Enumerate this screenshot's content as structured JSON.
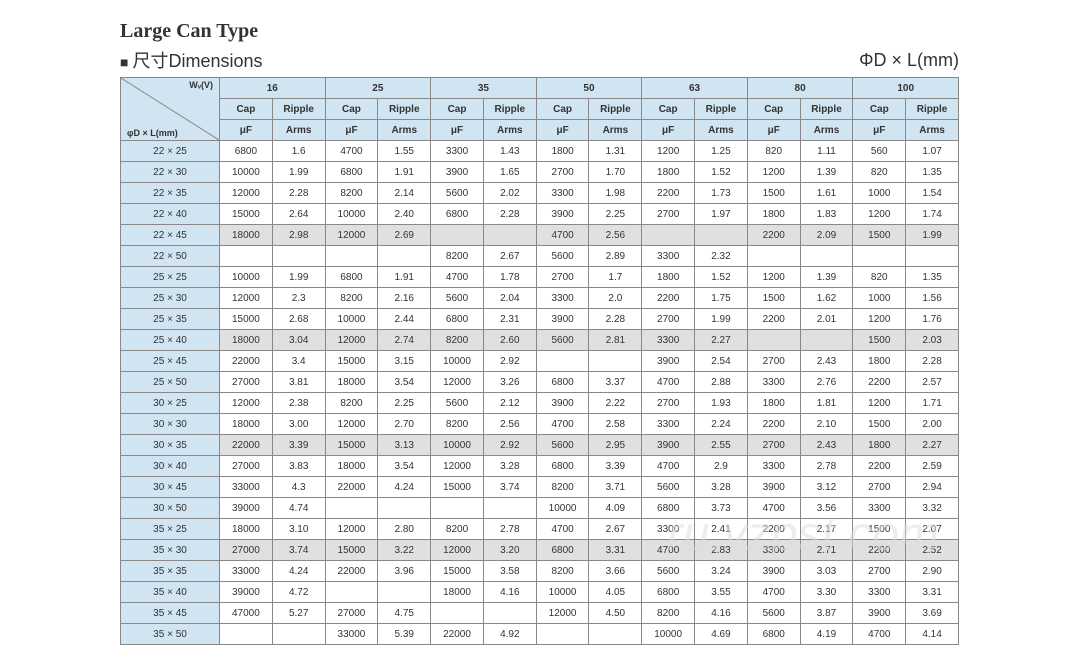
{
  "title": "Large Can Type",
  "dim_label_prefix": "■",
  "dim_label_cn": "尺寸",
  "dim_label_en": "Dimensions",
  "unit_label": "ΦD × L(mm)",
  "corner_top": "Wᵥ(V)",
  "corner_bot": "φD × L(mm)",
  "voltages": [
    "16",
    "25",
    "35",
    "50",
    "63",
    "80",
    "100"
  ],
  "sub1": [
    "Cap",
    "Ripple"
  ],
  "sub2": [
    "μF",
    "Arms"
  ],
  "rows": [
    {
      "label": "22 × 25",
      "shaded": false,
      "cells": [
        "6800",
        "1.6",
        "4700",
        "1.55",
        "3300",
        "1.43",
        "1800",
        "1.31",
        "1200",
        "1.25",
        "820",
        "1.11",
        "560",
        "1.07"
      ]
    },
    {
      "label": "22 × 30",
      "shaded": false,
      "cells": [
        "10000",
        "1.99",
        "6800",
        "1.91",
        "3900",
        "1.65",
        "2700",
        "1.70",
        "1800",
        "1.52",
        "1200",
        "1.39",
        "820",
        "1.35"
      ]
    },
    {
      "label": "22 × 35",
      "shaded": false,
      "cells": [
        "12000",
        "2.28",
        "8200",
        "2.14",
        "5600",
        "2.02",
        "3300",
        "1.98",
        "2200",
        "1.73",
        "1500",
        "1.61",
        "1000",
        "1.54"
      ]
    },
    {
      "label": "22 × 40",
      "shaded": false,
      "cells": [
        "15000",
        "2.64",
        "10000",
        "2.40",
        "6800",
        "2.28",
        "3900",
        "2.25",
        "2700",
        "1.97",
        "1800",
        "1.83",
        "1200",
        "1.74"
      ]
    },
    {
      "label": "22 × 45",
      "shaded": true,
      "cells": [
        "18000",
        "2.98",
        "12000",
        "2.69",
        "",
        "",
        "4700",
        "2.56",
        "",
        "",
        "2200",
        "2.09",
        "1500",
        "1.99"
      ]
    },
    {
      "label": "22 × 50",
      "shaded": false,
      "cells": [
        "",
        "",
        "",
        "",
        "8200",
        "2.67",
        "5600",
        "2.89",
        "3300",
        "2.32",
        "",
        "",
        "",
        ""
      ]
    },
    {
      "label": "25 × 25",
      "shaded": false,
      "cells": [
        "10000",
        "1.99",
        "6800",
        "1.91",
        "4700",
        "1.78",
        "2700",
        "1.7",
        "1800",
        "1.52",
        "1200",
        "1.39",
        "820",
        "1.35"
      ]
    },
    {
      "label": "25 × 30",
      "shaded": false,
      "cells": [
        "12000",
        "2.3",
        "8200",
        "2.16",
        "5600",
        "2.04",
        "3300",
        "2.0",
        "2200",
        "1.75",
        "1500",
        "1.62",
        "1000",
        "1.56"
      ]
    },
    {
      "label": "25 × 35",
      "shaded": false,
      "cells": [
        "15000",
        "2.68",
        "10000",
        "2.44",
        "6800",
        "2.31",
        "3900",
        "2.28",
        "2700",
        "1.99",
        "2200",
        "2.01",
        "1200",
        "1.76"
      ]
    },
    {
      "label": "25 × 40",
      "shaded": true,
      "cells": [
        "18000",
        "3.04",
        "12000",
        "2.74",
        "8200",
        "2.60",
        "5600",
        "2.81",
        "3300",
        "2.27",
        "",
        "",
        "1500",
        "2.03"
      ]
    },
    {
      "label": "25 × 45",
      "shaded": false,
      "cells": [
        "22000",
        "3.4",
        "15000",
        "3.15",
        "10000",
        "2.92",
        "",
        "",
        "3900",
        "2.54",
        "2700",
        "2.43",
        "1800",
        "2.28"
      ]
    },
    {
      "label": "25 × 50",
      "shaded": false,
      "cells": [
        "27000",
        "3.81",
        "18000",
        "3.54",
        "12000",
        "3.26",
        "6800",
        "3.37",
        "4700",
        "2.88",
        "3300",
        "2.76",
        "2200",
        "2.57"
      ]
    },
    {
      "label": "30 × 25",
      "shaded": false,
      "cells": [
        "12000",
        "2.38",
        "8200",
        "2.25",
        "5600",
        "2.12",
        "3900",
        "2.22",
        "2700",
        "1.93",
        "1800",
        "1.81",
        "1200",
        "1.71"
      ]
    },
    {
      "label": "30 × 30",
      "shaded": false,
      "cells": [
        "18000",
        "3.00",
        "12000",
        "2.70",
        "8200",
        "2.56",
        "4700",
        "2.58",
        "3300",
        "2.24",
        "2200",
        "2.10",
        "1500",
        "2.00"
      ]
    },
    {
      "label": "30 × 35",
      "shaded": true,
      "cells": [
        "22000",
        "3.39",
        "15000",
        "3.13",
        "10000",
        "2.92",
        "5600",
        "2.95",
        "3900",
        "2.55",
        "2700",
        "2.43",
        "1800",
        "2.27"
      ]
    },
    {
      "label": "30 × 40",
      "shaded": false,
      "cells": [
        "27000",
        "3.83",
        "18000",
        "3.54",
        "12000",
        "3.28",
        "6800",
        "3.39",
        "4700",
        "2.9",
        "3300",
        "2.78",
        "2200",
        "2.59"
      ]
    },
    {
      "label": "30 × 45",
      "shaded": false,
      "cells": [
        "33000",
        "4.3",
        "22000",
        "4.24",
        "15000",
        "3.74",
        "8200",
        "3.71",
        "5600",
        "3.28",
        "3900",
        "3.12",
        "2700",
        "2.94"
      ]
    },
    {
      "label": "30 × 50",
      "shaded": false,
      "cells": [
        "39000",
        "4.74",
        "",
        "",
        "",
        "",
        "10000",
        "4.09",
        "6800",
        "3.73",
        "4700",
        "3.56",
        "3300",
        "3.32"
      ]
    },
    {
      "label": "35 × 25",
      "shaded": false,
      "cells": [
        "18000",
        "3.10",
        "12000",
        "2.80",
        "8200",
        "2.78",
        "4700",
        "2.67",
        "3300",
        "2.41",
        "2200",
        "2.17",
        "1500",
        "2.07"
      ]
    },
    {
      "label": "35 × 30",
      "shaded": true,
      "cells": [
        "27000",
        "3.74",
        "15000",
        "3.22",
        "12000",
        "3.20",
        "6800",
        "3.31",
        "4700",
        "2.83",
        "3300",
        "2.71",
        "2200",
        "2.52"
      ]
    },
    {
      "label": "35 × 35",
      "shaded": false,
      "cells": [
        "33000",
        "4.24",
        "22000",
        "3.96",
        "15000",
        "3.58",
        "8200",
        "3.66",
        "5600",
        "3.24",
        "3900",
        "3.03",
        "2700",
        "2.90"
      ]
    },
    {
      "label": "35 × 40",
      "shaded": false,
      "cells": [
        "39000",
        "4.72",
        "",
        "",
        "18000",
        "4.16",
        "10000",
        "4.05",
        "6800",
        "3.55",
        "4700",
        "3.30",
        "3300",
        "3.31"
      ]
    },
    {
      "label": "35 × 45",
      "shaded": false,
      "cells": [
        "47000",
        "5.27",
        "27000",
        "4.75",
        "",
        "",
        "12000",
        "4.50",
        "8200",
        "4.16",
        "5600",
        "3.87",
        "3900",
        "3.69"
      ]
    },
    {
      "label": "35 × 50",
      "shaded": false,
      "cells": [
        "",
        "",
        "33000",
        "5.39",
        "22000",
        "4.92",
        "",
        "",
        "10000",
        "4.69",
        "6800",
        "4.19",
        "4700",
        "4.14"
      ]
    }
  ],
  "watermark": "ru.yzpst.com"
}
